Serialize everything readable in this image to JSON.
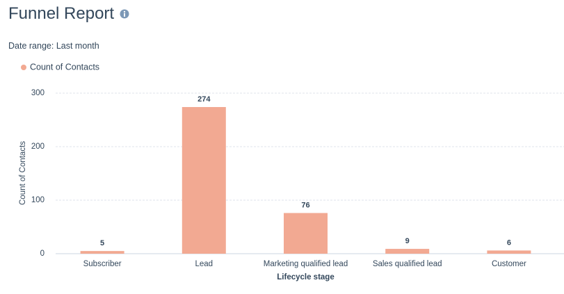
{
  "header": {
    "title": "Funnel Report",
    "date_range_label": "Date range:",
    "date_range_value": "Last month"
  },
  "chart_data": {
    "type": "bar",
    "x_label": "Lifecycle stage",
    "y_label": "Count of Contacts",
    "categories": [
      "Subscriber",
      "Lead",
      "Marketing qualified lead",
      "Sales qualified lead",
      "Customer"
    ],
    "series": [
      {
        "name": "Count of Contacts",
        "color": "#f2a992",
        "values": [
          5,
          274,
          76,
          9,
          6
        ]
      }
    ],
    "ylim": [
      0,
      300
    ],
    "yticks": [
      0,
      100,
      200,
      300
    ],
    "grid": true
  }
}
